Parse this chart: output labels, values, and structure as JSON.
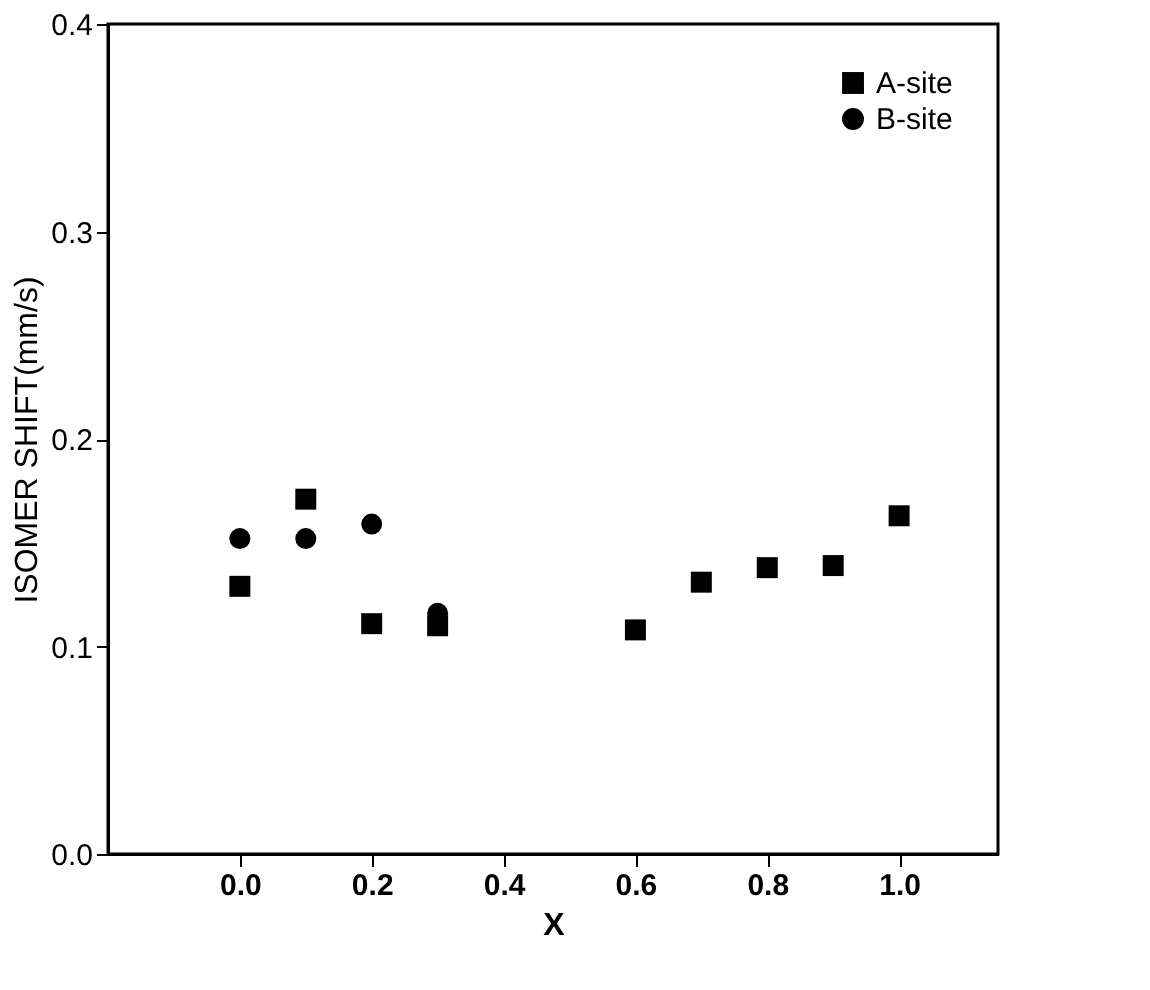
{
  "chart_data": {
    "type": "scatter",
    "xlabel": "X",
    "ylabel": "ISOMER SHIFT(mm/s)",
    "xlim": [
      -0.2,
      1.15
    ],
    "xticks": [
      {
        "value": 0,
        "label": "0.0"
      },
      0.2,
      0.4,
      0.6,
      0.8,
      {
        "value": 1,
        "label": "1.0"
      }
    ],
    "ylim": [
      0.0,
      0.4
    ],
    "yticks": [
      {
        "value": 0,
        "label": "0.0"
      },
      0.1,
      0.2,
      0.3,
      0.4
    ],
    "grid": false,
    "legend": "top right",
    "series": [
      {
        "name": "A-site",
        "color": "#000000",
        "marker": "square",
        "x": [
          0.0,
          0.1,
          0.2,
          0.3,
          0.6,
          0.7,
          0.8,
          0.9,
          1.0
        ],
        "values": [
          0.129,
          0.171,
          0.111,
          0.11,
          0.108,
          0.131,
          0.138,
          0.139,
          0.163
        ]
      },
      {
        "name": "B-site",
        "color": "#000000",
        "marker": "circle",
        "x": [
          0.0,
          0.1,
          0.2,
          0.3
        ],
        "values": [
          0.152,
          0.152,
          0.159,
          0.116
        ]
      }
    ]
  }
}
